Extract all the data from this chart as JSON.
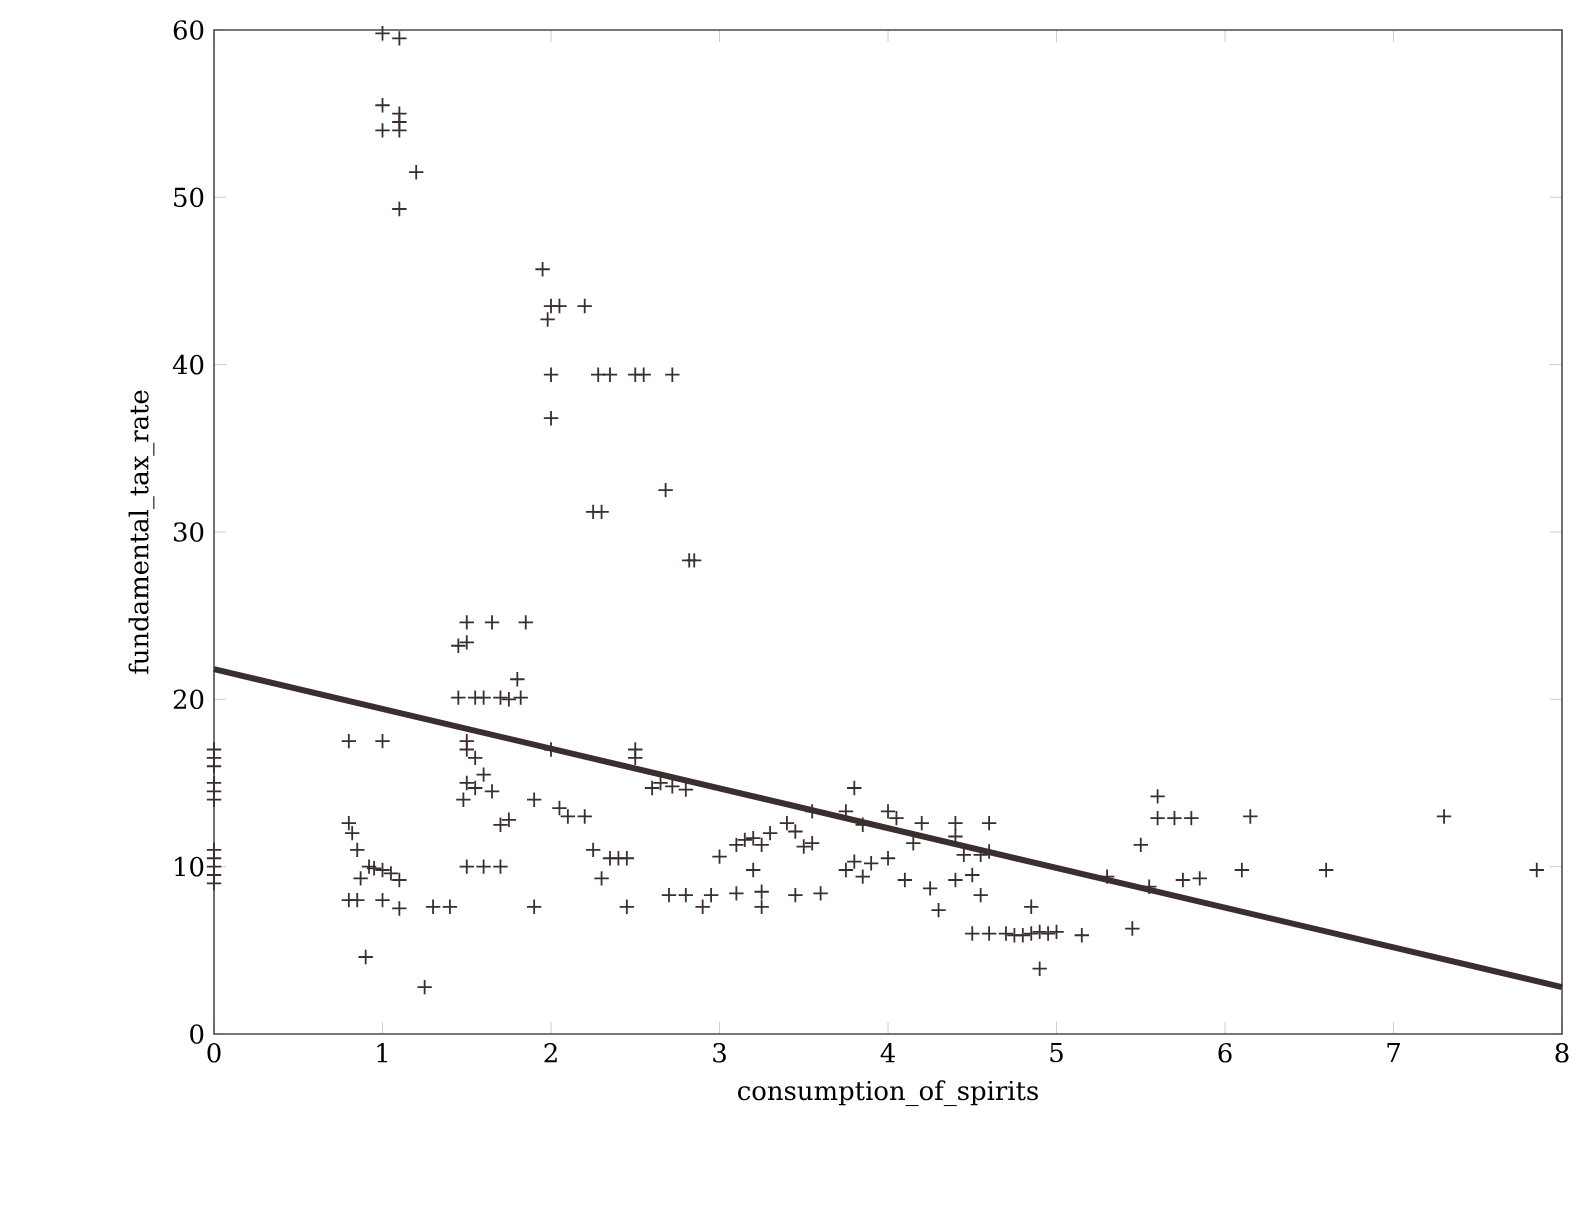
{
  "chart_data": {
    "type": "scatter",
    "xlabel": "consumption_of_spirits",
    "ylabel": "fundamental_tax_rate",
    "xlim": [
      0,
      8
    ],
    "ylim": [
      0,
      60
    ],
    "xticks": [
      0,
      1,
      2,
      3,
      4,
      5,
      6,
      7,
      8
    ],
    "yticks": [
      0,
      10,
      20,
      30,
      40,
      50,
      60
    ],
    "grid": false,
    "series": [
      {
        "marker": "cross",
        "color": "#3a2e2e",
        "x": [
          0,
          0,
          0,
          0,
          0,
          0,
          0,
          0,
          0,
          0,
          0,
          1,
          1.1,
          1,
          1.1,
          1.1,
          1,
          1.1,
          1.2,
          1.1,
          1.95,
          2,
          2.05,
          1.98,
          2,
          2,
          2.2,
          2.28,
          2.35,
          2.5,
          2.55,
          2.72,
          2.25,
          2.3,
          2.68,
          2.82,
          2.85,
          1.45,
          1.5,
          1.5,
          1.65,
          1.85,
          1.8,
          1.45,
          1.55,
          1.6,
          1.7,
          1.75,
          1.82,
          1.5,
          1.5,
          1.55,
          1.6,
          1.5,
          1.55,
          1.65,
          1.48,
          1.7,
          1.75,
          1.5,
          1.6,
          1.7,
          1.9,
          2,
          2.05,
          2.1,
          2.2,
          2.25,
          2.35,
          2.4,
          2.45,
          2.3,
          2.45,
          1.9,
          1.3,
          1.4,
          1.25,
          0.9,
          0.8,
          1,
          0.8,
          0.82,
          0.85,
          0.92,
          0.95,
          1,
          1.05,
          1.1,
          0.87,
          0.8,
          0.85,
          1,
          1.1,
          2.5,
          2.5,
          2.65,
          2.72,
          2.8,
          2.6,
          2.7,
          2.8,
          2.95,
          2.9,
          3,
          3.1,
          3.15,
          3.2,
          3.25,
          3.3,
          3.2,
          3.25,
          3.25,
          3.1,
          3.4,
          3.45,
          3.55,
          3.55,
          3.5,
          3.45,
          3.6,
          3.75,
          3.8,
          3.85,
          3.8,
          3.75,
          3.85,
          3.9,
          4,
          4,
          4.05,
          4.15,
          4.1,
          4.2,
          4.25,
          4.3,
          4.4,
          4.4,
          4.4,
          4.45,
          4.5,
          4.55,
          4.6,
          4.6,
          4.55,
          4.5,
          4.6,
          4.7,
          4.75,
          4.8,
          4.85,
          4.9,
          4.95,
          5,
          4.85,
          4.9,
          5.15,
          5.3,
          5.45,
          5.5,
          5.6,
          5.6,
          5.7,
          5.8,
          5.55,
          5.75,
          5.85,
          6.1,
          6.15,
          6.6,
          7.3,
          7.85
        ],
        "values": [
          17,
          16.5,
          16,
          15,
          14.5,
          14,
          11,
          10.5,
          10,
          9.5,
          9,
          59.8,
          59.5,
          55.5,
          55,
          54.5,
          54,
          54,
          51.5,
          49.3,
          45.7,
          43.5,
          43.5,
          42.7,
          39.4,
          36.8,
          43.5,
          39.4,
          39.4,
          39.4,
          39.4,
          39.4,
          31.2,
          31.2,
          32.5,
          28.3,
          28.3,
          23.2,
          23.4,
          24.6,
          24.6,
          24.6,
          21.2,
          20.1,
          20.1,
          20.1,
          20.1,
          20,
          20.1,
          17.5,
          17,
          16.5,
          15.5,
          15,
          14.7,
          14.5,
          14,
          12.5,
          12.8,
          10,
          10,
          10,
          14,
          17,
          13.5,
          13,
          13,
          11,
          10.5,
          10.5,
          10.5,
          9.3,
          7.6,
          7.6,
          7.6,
          7.6,
          2.8,
          4.6,
          17.5,
          17.5,
          12.6,
          12,
          11,
          10,
          9.9,
          9.8,
          9.6,
          9.2,
          9.3,
          8,
          8,
          8,
          7.5,
          17,
          16.5,
          15,
          14.8,
          14.6,
          14.7,
          8.3,
          8.3,
          8.3,
          7.6,
          10.6,
          11.3,
          11.6,
          11.7,
          11.3,
          12,
          9.8,
          8.5,
          7.6,
          8.4,
          12.6,
          12.1,
          13.3,
          11.4,
          11.2,
          8.3,
          8.4,
          13.3,
          14.7,
          12.5,
          10.3,
          9.8,
          9.4,
          10.2,
          13.3,
          10.5,
          12.9,
          11.4,
          9.2,
          12.6,
          8.7,
          7.4,
          12.6,
          11.8,
          9.2,
          10.7,
          9.5,
          10.7,
          12.6,
          10.9,
          8.3,
          6,
          6,
          6,
          5.9,
          5.9,
          6,
          6.1,
          6,
          6.1,
          7.6,
          3.9,
          5.9,
          9.4,
          6.3,
          11.3,
          14.2,
          12.9,
          12.9,
          12.9,
          8.8,
          9.2,
          9.3,
          9.8,
          13,
          9.8,
          13,
          9.8
        ]
      },
      {
        "type": "line",
        "marker": "none",
        "color": "#3a2e2e",
        "x": [
          0,
          8
        ],
        "values": [
          21.8,
          2.8
        ]
      }
    ]
  }
}
